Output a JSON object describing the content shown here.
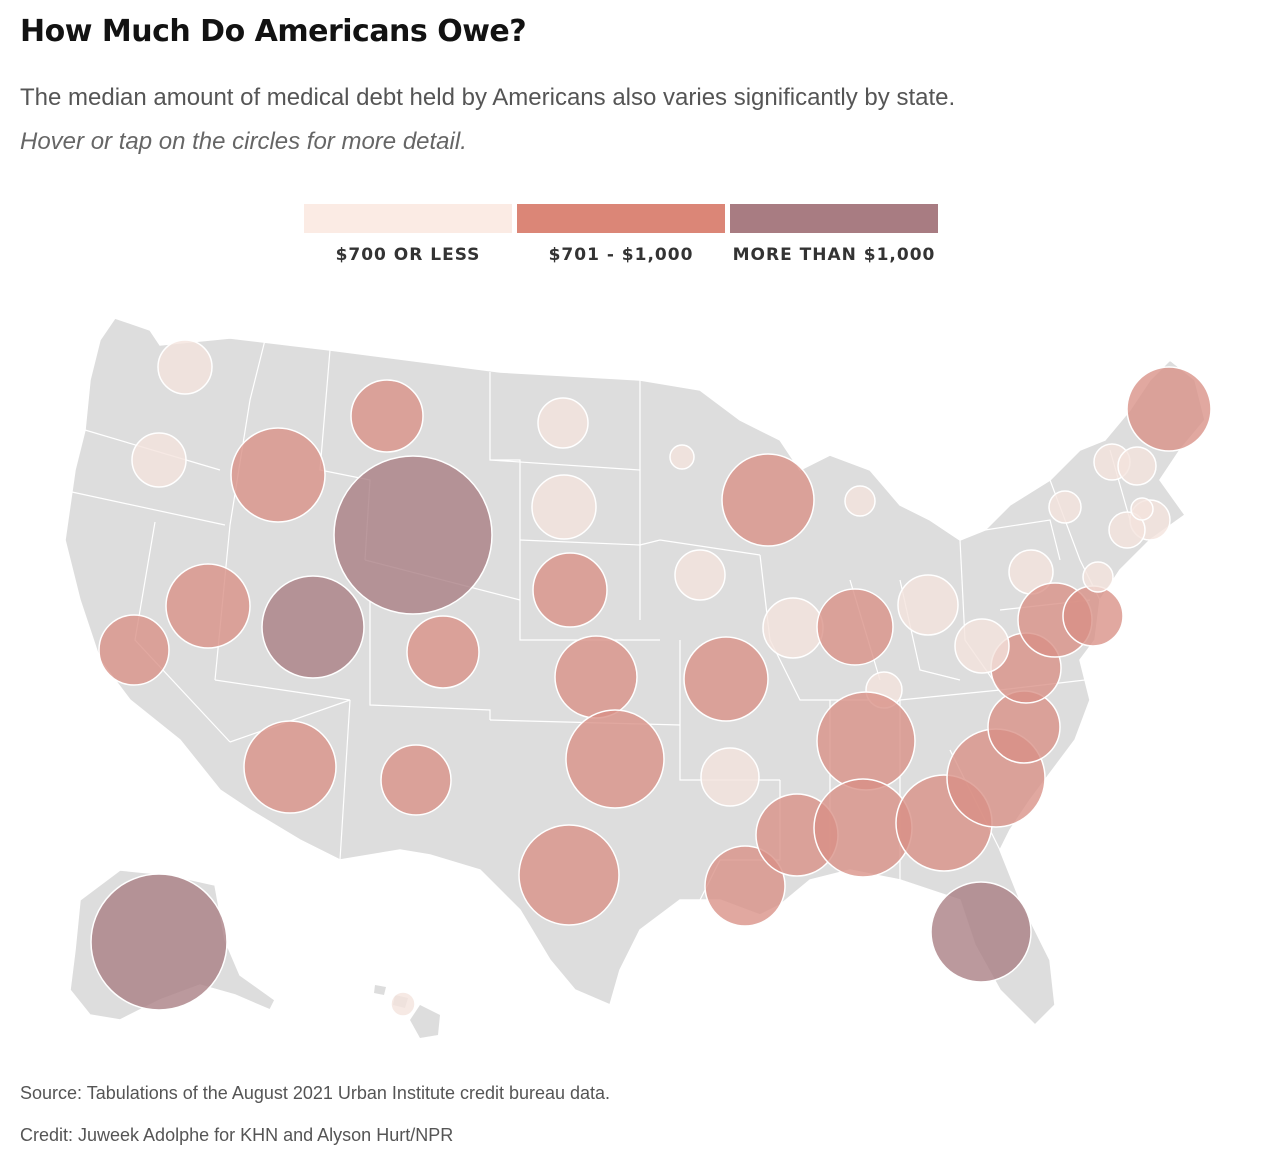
{
  "header": {
    "title": "How Much Do Americans Owe?",
    "subtitle": "The median amount of medical debt held by Americans also varies significantly by state.",
    "hint": "Hover or tap on the circles for more detail."
  },
  "legend": [
    {
      "label": "$700 OR LESS",
      "color": "#fbebe4"
    },
    {
      "label": "$701 - $1,000",
      "color": "#db8677"
    },
    {
      "label": "MORE THAN $1,000",
      "color": "#a87c82"
    }
  ],
  "colors": {
    "land": "#dddddd",
    "border": "#ffffff",
    "low": "#f3e3dc",
    "mid": "#d99085",
    "high": "#a87c82"
  },
  "footer": {
    "source": "Source: Tabulations of the August 2021 Urban Institute credit bureau data.",
    "credit": "Credit: Juweek Adolphe for KHN and Alyson Hurt/NPR"
  }
}
